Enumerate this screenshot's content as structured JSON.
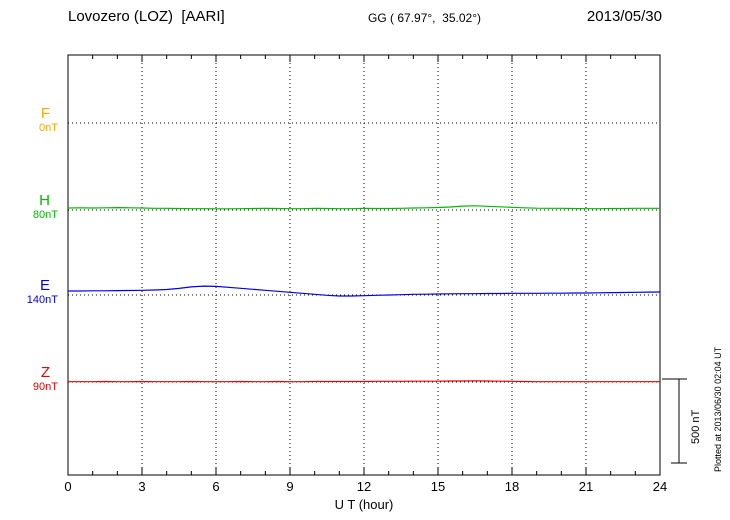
{
  "header": {
    "station": "Lovozero (LOZ)  [AARI]",
    "coords": "GG ( 67.97°,  35.02°)",
    "date": "2013/05/30"
  },
  "footer": {
    "plotted_note": "Plotted at 2013/06/30 02:04 UT"
  },
  "chart_data": {
    "type": "line",
    "title": "Lovozero (LOZ) [AARI] magnetogram",
    "xlabel": "U T (hour)",
    "x_range": [
      0,
      24
    ],
    "x_ticks": [
      "0",
      "3",
      "6",
      "9",
      "12",
      "15",
      "18",
      "21",
      "24"
    ],
    "sample_interval_hours": 0.5,
    "grid": "dotted",
    "scale_bar_label": "500 nT",
    "scale_bar_nT": 500,
    "series": [
      {
        "name": "F",
        "baseline_label": "0nT",
        "color": "#FFA500",
        "values": []
      },
      {
        "name": "H",
        "baseline_label": "80nT",
        "color": "#00BB00",
        "values": [
          12,
          13,
          12,
          13,
          14,
          13,
          12,
          10,
          10,
          9,
          8,
          8,
          7,
          7,
          8,
          9,
          10,
          9,
          8,
          8,
          10,
          9,
          8,
          8,
          10,
          9,
          9,
          10,
          12,
          13,
          15,
          18,
          23,
          25,
          22,
          19,
          16,
          13,
          11,
          10,
          10,
          9,
          8,
          8,
          9,
          9,
          10,
          10,
          10
        ]
      },
      {
        "name": "E",
        "baseline_label": "140nT",
        "color": "#0000EE",
        "values": [
          24,
          24,
          25,
          25,
          26,
          27,
          28,
          30,
          33,
          39,
          48,
          53,
          51,
          46,
          40,
          34,
          28,
          22,
          16,
          10,
          4,
          -2,
          -6,
          -6,
          -4,
          -2,
          0,
          2,
          4,
          5,
          6,
          7,
          8,
          8,
          9,
          9,
          10,
          10,
          10,
          11,
          11,
          12,
          12,
          13,
          14,
          15,
          16,
          17,
          18
        ]
      },
      {
        "name": "Z",
        "baseline_label": "90nT",
        "color": "#EE0000",
        "values": [
          2,
          2,
          2,
          3,
          2,
          2,
          3,
          2,
          2,
          2,
          3,
          2,
          2,
          2,
          3,
          2,
          2,
          3,
          2,
          2,
          3,
          3,
          3,
          3,
          3,
          4,
          4,
          4,
          5,
          5,
          5,
          6,
          6,
          7,
          6,
          5,
          4,
          3,
          2,
          2,
          2,
          2,
          2,
          2,
          2,
          2,
          2,
          2,
          2
        ]
      }
    ]
  }
}
